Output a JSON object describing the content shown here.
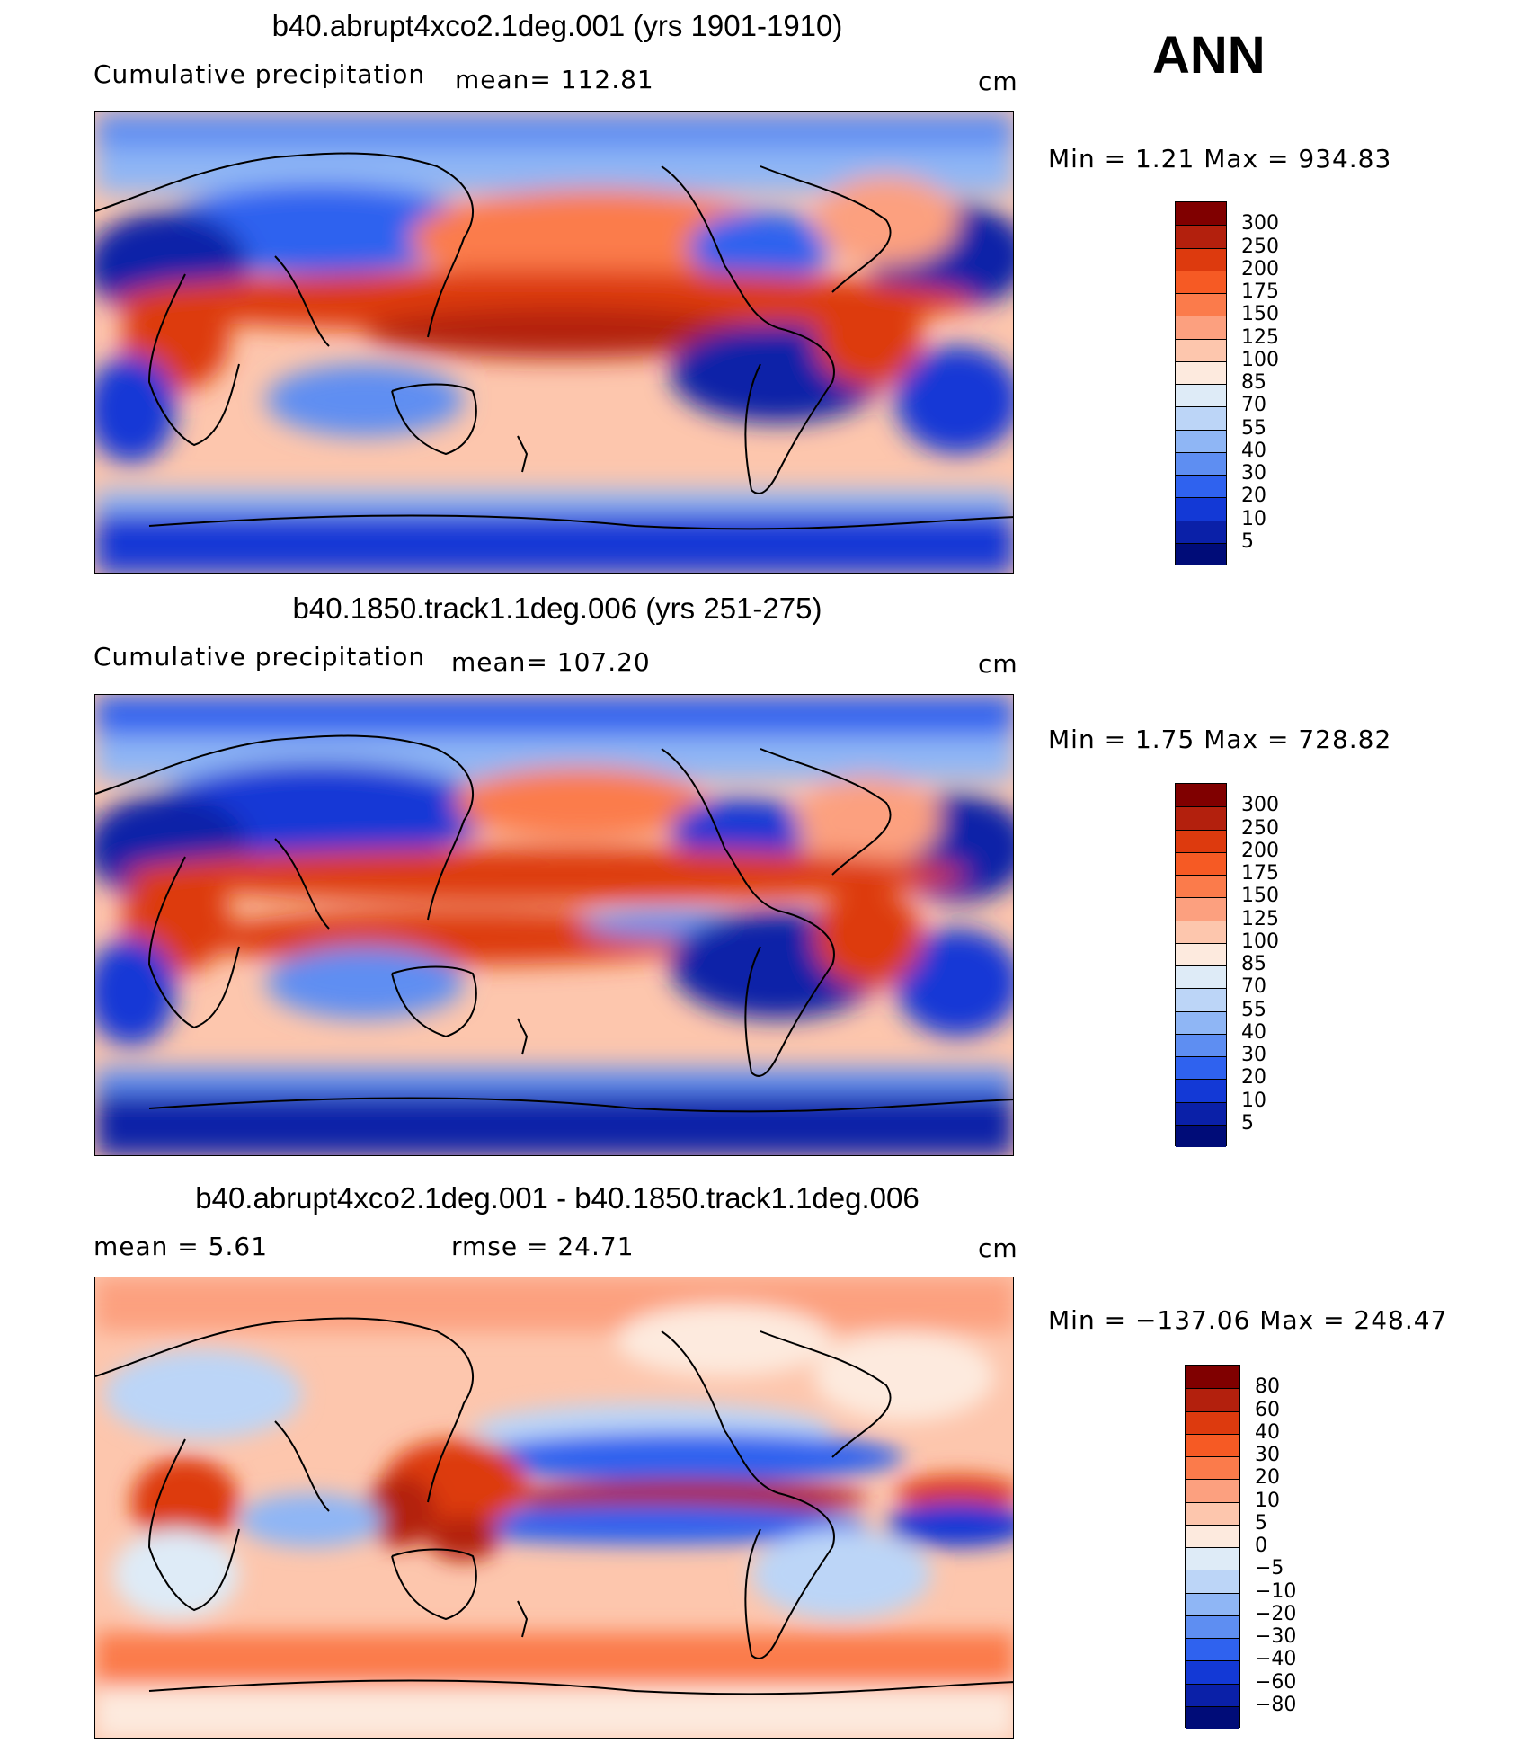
{
  "season": "ANN",
  "panels": [
    {
      "title": "b40.abrupt4xco2.1deg.001 (yrs 1901-1910)",
      "left_label": "Cumulative precipitation",
      "stat_label": "mean= 112.81",
      "units": "cm",
      "minmax": "Min =    1.21  Max = 934.83",
      "colorbar": "abs"
    },
    {
      "title": "b40.1850.track1.1deg.006 (yrs 251-275)",
      "left_label": "Cumulative precipitation",
      "stat_label": "mean= 107.20",
      "units": "cm",
      "minmax": "Min =    1.75  Max = 728.82",
      "colorbar": "abs"
    },
    {
      "title": "b40.abrupt4xco2.1deg.001 - b40.1850.track1.1deg.006",
      "left_label": "mean =     5.61",
      "stat_label": "rmse =    24.71",
      "units": "cm",
      "minmax": "Min = −137.06  Max = 248.47",
      "colorbar": "diff"
    }
  ],
  "colorbars": {
    "abs": {
      "levels": [
        "300",
        "250",
        "200",
        "175",
        "150",
        "125",
        "100",
        "85",
        "70",
        "55",
        "40",
        "30",
        "20",
        "10",
        "5"
      ],
      "colors": [
        "#800000",
        "#b3200d",
        "#dd3a0e",
        "#f65a24",
        "#fb7b4b",
        "#fca07f",
        "#fdc6ad",
        "#fdeade",
        "#deebf7",
        "#bcd5f7",
        "#8fb6f5",
        "#5e8ef2",
        "#2f62ef",
        "#1339d6",
        "#0a20a8",
        "#000c78"
      ]
    },
    "diff": {
      "levels": [
        "80",
        "60",
        "40",
        "30",
        "20",
        "10",
        "5",
        "0",
        "−5",
        "−10",
        "−20",
        "−30",
        "−40",
        "−60",
        "−80"
      ],
      "colors": [
        "#800000",
        "#b3200d",
        "#dd3a0e",
        "#f65a24",
        "#fb7b4b",
        "#fca07f",
        "#fdc6ad",
        "#fdeade",
        "#deebf7",
        "#bcd5f7",
        "#8fb6f5",
        "#5e8ef2",
        "#2f62ef",
        "#1339d6",
        "#0a20a8",
        "#000c78"
      ]
    }
  },
  "chart_data": [
    {
      "type": "heatmap",
      "title": "b40.abrupt4xco2.1deg.001 (yrs 1901-1910)",
      "variable": "Cumulative precipitation",
      "units": "cm",
      "mean": 112.81,
      "min": 1.21,
      "max": 934.83,
      "levels": [
        5,
        10,
        20,
        30,
        40,
        55,
        70,
        85,
        100,
        125,
        150,
        175,
        200,
        250,
        300
      ],
      "xlabel": "",
      "ylabel": "",
      "projection": "cylindrical equidistant, centered on Pacific"
    },
    {
      "type": "heatmap",
      "title": "b40.1850.track1.1deg.006 (yrs 251-275)",
      "variable": "Cumulative precipitation",
      "units": "cm",
      "mean": 107.2,
      "min": 1.75,
      "max": 728.82,
      "levels": [
        5,
        10,
        20,
        30,
        40,
        55,
        70,
        85,
        100,
        125,
        150,
        175,
        200,
        250,
        300
      ],
      "xlabel": "",
      "ylabel": "",
      "projection": "cylindrical equidistant, centered on Pacific"
    },
    {
      "type": "heatmap",
      "title": "b40.abrupt4xco2.1deg.001 - b40.1850.track1.1deg.006",
      "units": "cm",
      "mean": 5.61,
      "rmse": 24.71,
      "min": -137.06,
      "max": 248.47,
      "levels": [
        -80,
        -60,
        -40,
        -30,
        -20,
        -10,
        -5,
        0,
        5,
        10,
        20,
        30,
        40,
        60,
        80
      ],
      "xlabel": "",
      "ylabel": "",
      "projection": "cylindrical equidistant, centered on Pacific"
    }
  ]
}
